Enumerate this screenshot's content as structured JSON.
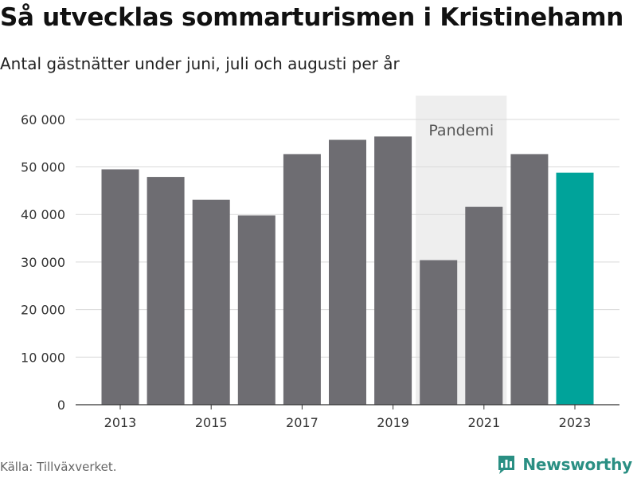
{
  "header": {
    "title": "Så utvecklas sommarturismen i Kristinehamn",
    "subtitle": "Antal gästnätter under juni, juli och augusti per år"
  },
  "footer": {
    "source": "Källa: Tillväxverket.",
    "brand": "Newsworthy"
  },
  "colors": {
    "bar": "#6e6d72",
    "highlight": "#00a39a",
    "pandemic_band": "#eeeeee",
    "grid": "#d9d9d9",
    "brand": "#2a8f83"
  },
  "icons": {
    "brand_logo": "newsworthy-logo-icon"
  },
  "chart_data": {
    "type": "bar",
    "categories": [
      "2013",
      "2014",
      "2015",
      "2016",
      "2017",
      "2018",
      "2019",
      "2020",
      "2021",
      "2022",
      "2023"
    ],
    "values": [
      49500,
      47900,
      43100,
      39800,
      52700,
      55700,
      56400,
      30400,
      41600,
      52700,
      48800
    ],
    "highlight_category": "2023",
    "x_tick_labels": [
      "2013",
      "2015",
      "2017",
      "2019",
      "2021",
      "2023"
    ],
    "y_ticks": [
      0,
      10000,
      20000,
      30000,
      40000,
      50000,
      60000
    ],
    "y_tick_labels": [
      "0",
      "10 000",
      "20 000",
      "30 000",
      "40 000",
      "50 000",
      "60 000"
    ],
    "ylim": [
      0,
      65000
    ],
    "xlabel": "",
    "ylabel": "",
    "grid": true,
    "annotation": {
      "label": "Pandemi",
      "from": "2020",
      "to": "2021"
    }
  }
}
